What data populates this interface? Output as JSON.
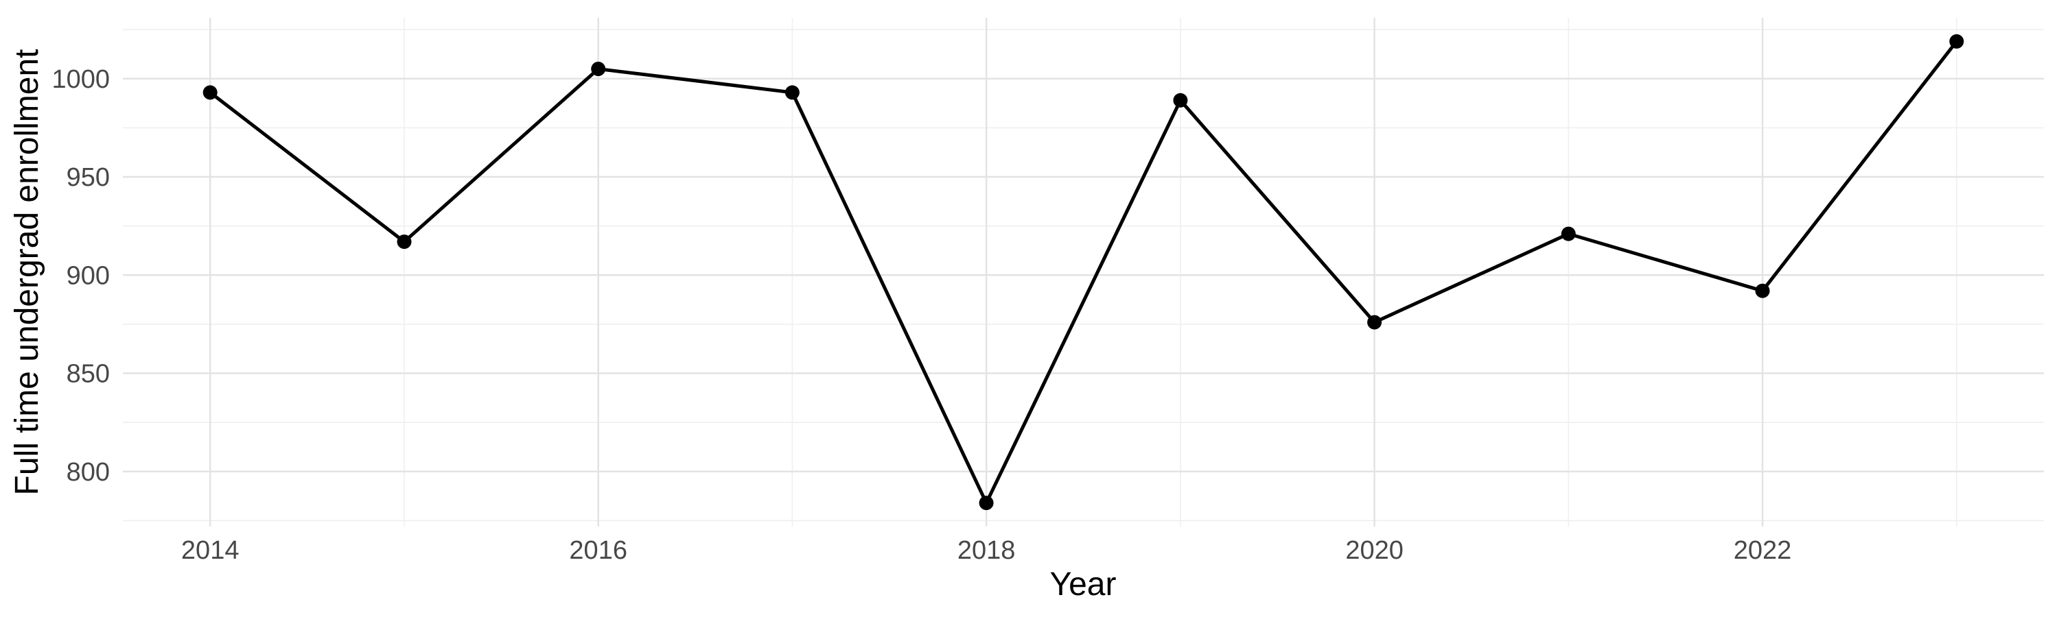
{
  "chart_data": {
    "type": "line",
    "title": "",
    "xlabel": "Year",
    "ylabel": "Full time undergrad enrollment",
    "x": [
      2014,
      2015,
      2016,
      2017,
      2018,
      2019,
      2020,
      2021,
      2022,
      2023
    ],
    "values": [
      993,
      917,
      1005,
      993,
      784,
      989,
      876,
      921,
      892,
      1019
    ],
    "series_name": "Full time undergrad enrollment",
    "xlim": [
      2013.55,
      2023.45
    ],
    "ylim": [
      772,
      1031
    ],
    "x_major_ticks": [
      2014,
      2016,
      2018,
      2020,
      2022
    ],
    "x_minor_gridlines": [
      2015,
      2017,
      2019,
      2021,
      2023
    ],
    "y_major_ticks": [
      800,
      850,
      900,
      950,
      1000
    ],
    "y_minor_gridlines": [
      775,
      825,
      875,
      925,
      975,
      1025
    ],
    "grid": true,
    "legend": false,
    "line_color": "#000000",
    "point_color": "#000000",
    "grid_major_color": "#e3e3e3",
    "grid_minor_color": "#efefef",
    "tick_label_color": "#474747",
    "axis_title_color": "#000000",
    "background_color": "#ffffff"
  }
}
